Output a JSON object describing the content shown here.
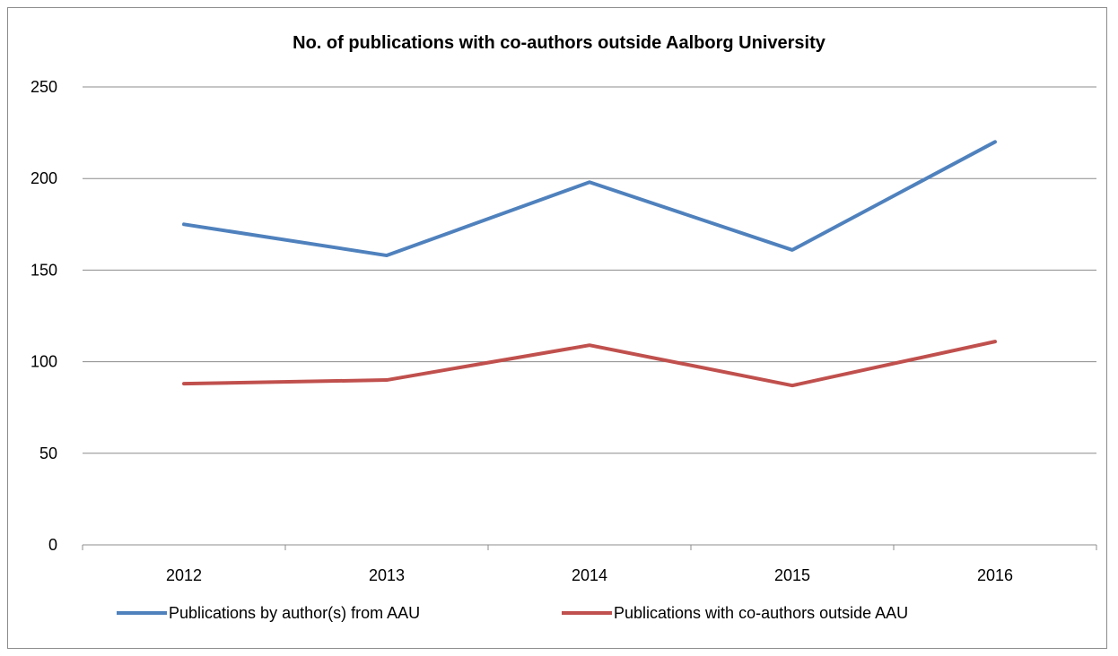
{
  "chart_data": {
    "type": "line",
    "title": "No. of publications with co-authors outside Aalborg University",
    "xlabel": "",
    "ylabel": "",
    "categories": [
      "2012",
      "2013",
      "2014",
      "2015",
      "2016"
    ],
    "ylim": [
      0,
      250
    ],
    "yticks": [
      "0",
      "50",
      "100",
      "150",
      "200",
      "250"
    ],
    "grid": true,
    "legend_position": "bottom",
    "series": [
      {
        "name": "Publications by author(s) from AAU",
        "color": "#4f81bd",
        "values": [
          175,
          158,
          198,
          161,
          220
        ]
      },
      {
        "name": "Publications with co-authors outside AAU",
        "color": "#c0504d",
        "values": [
          88,
          90,
          109,
          87,
          111
        ]
      }
    ]
  }
}
